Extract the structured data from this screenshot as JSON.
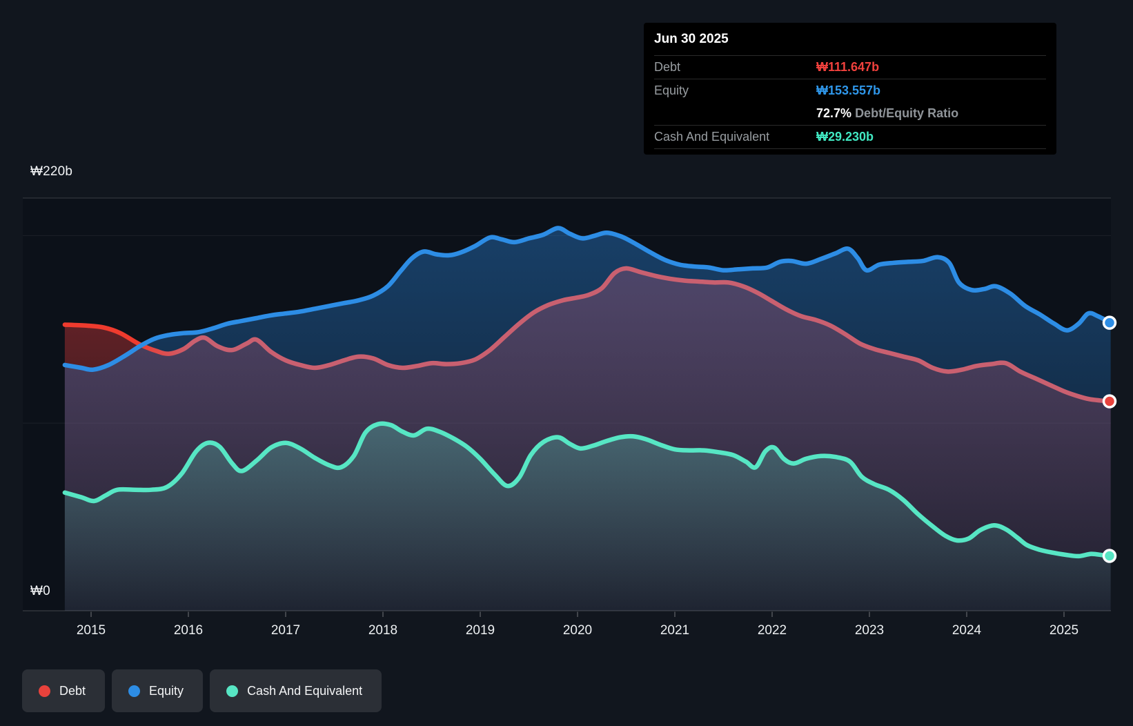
{
  "colors": {
    "page_bg": "#11161e",
    "plot_bg": "#0c1119",
    "grid_bright": "#ffffff",
    "debt_line": "#c96070",
    "debt_line_bright": "#ef3b2e",
    "debt_dot": "#e8423c",
    "debt_fill": "#e23a3a",
    "equity_line": "#2d8de5",
    "equity_fill": "#2676c4",
    "cash_line": "#57e6c4",
    "cash_fill": "#5ae4c8",
    "tooltip_debt_value": "#f1413d",
    "tooltip_equity_value": "#2f97ea",
    "tooltip_cash_value": "#41e8c2"
  },
  "tooltip": {
    "date": "Jun 30 2025",
    "debt_label": "Debt",
    "debt_value": "₩111.647b",
    "equity_label": "Equity",
    "equity_value": "₩153.557b",
    "ratio_value": "72.7%",
    "ratio_label": "Debt/Equity Ratio",
    "cash_label": "Cash And Equivalent",
    "cash_value": "₩29.230b"
  },
  "legend": {
    "items": [
      {
        "label": "Debt",
        "color": "#e8423c"
      },
      {
        "label": "Equity",
        "color": "#2d8de5"
      },
      {
        "label": "Cash And Equivalent",
        "color": "#57e6c4"
      }
    ]
  },
  "chart_data": {
    "type": "area",
    "unit": "₩ billions (KRW)",
    "x_axis": {
      "ticks": [
        2015,
        2016,
        2017,
        2018,
        2019,
        2020,
        2021,
        2022,
        2023,
        2024,
        2025
      ],
      "start": 2014.73,
      "end": 2025.48
    },
    "y_axis": {
      "top_label": "₩220b",
      "zero_label": "₩0",
      "max": 220,
      "min": 0,
      "gridlines": [
        220,
        200,
        100,
        0
      ]
    },
    "series": [
      {
        "name": "Debt",
        "final_value": 111.647,
        "points": [
          [
            2014.73,
            152.5
          ],
          [
            2014.95,
            152
          ],
          [
            2015.13,
            151
          ],
          [
            2015.3,
            148
          ],
          [
            2015.5,
            142
          ],
          [
            2015.67,
            138.5
          ],
          [
            2015.8,
            137
          ],
          [
            2015.95,
            139.5
          ],
          [
            2016.07,
            144
          ],
          [
            2016.17,
            145.5
          ],
          [
            2016.3,
            141
          ],
          [
            2016.45,
            139
          ],
          [
            2016.6,
            142.5
          ],
          [
            2016.7,
            144.5
          ],
          [
            2016.85,
            138
          ],
          [
            2017.0,
            133.5
          ],
          [
            2017.15,
            131
          ],
          [
            2017.3,
            129.5
          ],
          [
            2017.45,
            131
          ],
          [
            2017.6,
            133.5
          ],
          [
            2017.75,
            135.5
          ],
          [
            2017.9,
            134.5
          ],
          [
            2018.05,
            131
          ],
          [
            2018.2,
            129.5
          ],
          [
            2018.35,
            130.5
          ],
          [
            2018.5,
            132
          ],
          [
            2018.65,
            131.5
          ],
          [
            2018.8,
            132
          ],
          [
            2018.95,
            134
          ],
          [
            2019.1,
            139
          ],
          [
            2019.25,
            146
          ],
          [
            2019.4,
            153
          ],
          [
            2019.55,
            159
          ],
          [
            2019.7,
            163
          ],
          [
            2019.85,
            165.5
          ],
          [
            2020.0,
            167
          ],
          [
            2020.12,
            168.5
          ],
          [
            2020.25,
            172
          ],
          [
            2020.38,
            180
          ],
          [
            2020.5,
            182.5
          ],
          [
            2020.65,
            180.5
          ],
          [
            2020.8,
            178.5
          ],
          [
            2020.95,
            177
          ],
          [
            2021.1,
            176
          ],
          [
            2021.25,
            175.5
          ],
          [
            2021.4,
            175
          ],
          [
            2021.55,
            175
          ],
          [
            2021.7,
            173
          ],
          [
            2021.85,
            169.5
          ],
          [
            2022.0,
            165
          ],
          [
            2022.15,
            160.5
          ],
          [
            2022.3,
            157
          ],
          [
            2022.45,
            155
          ],
          [
            2022.6,
            152
          ],
          [
            2022.75,
            147.5
          ],
          [
            2022.9,
            142.5
          ],
          [
            2023.05,
            139.5
          ],
          [
            2023.2,
            137.5
          ],
          [
            2023.35,
            135.5
          ],
          [
            2023.5,
            133.5
          ],
          [
            2023.65,
            129.5
          ],
          [
            2023.8,
            127.5
          ],
          [
            2023.95,
            128.5
          ],
          [
            2024.1,
            130.5
          ],
          [
            2024.25,
            131.5
          ],
          [
            2024.4,
            132
          ],
          [
            2024.55,
            127.5
          ],
          [
            2024.7,
            124
          ],
          [
            2024.85,
            120.5
          ],
          [
            2025.0,
            117
          ],
          [
            2025.12,
            114.8
          ],
          [
            2025.25,
            112.9
          ],
          [
            2025.37,
            112.1
          ],
          [
            2025.48,
            111.647
          ]
        ]
      },
      {
        "name": "Equity",
        "final_value": 153.557,
        "points": [
          [
            2014.73,
            131
          ],
          [
            2014.9,
            129.5
          ],
          [
            2015.02,
            128.5
          ],
          [
            2015.18,
            131
          ],
          [
            2015.35,
            136
          ],
          [
            2015.5,
            141
          ],
          [
            2015.65,
            145
          ],
          [
            2015.8,
            147
          ],
          [
            2015.95,
            148
          ],
          [
            2016.1,
            148.5
          ],
          [
            2016.25,
            150.5
          ],
          [
            2016.4,
            153
          ],
          [
            2016.55,
            154.5
          ],
          [
            2016.7,
            156
          ],
          [
            2016.85,
            157.5
          ],
          [
            2017.0,
            158.5
          ],
          [
            2017.15,
            159.5
          ],
          [
            2017.3,
            161
          ],
          [
            2017.45,
            162.5
          ],
          [
            2017.6,
            164
          ],
          [
            2017.75,
            165.5
          ],
          [
            2017.9,
            168
          ],
          [
            2018.05,
            173
          ],
          [
            2018.18,
            181
          ],
          [
            2018.3,
            188
          ],
          [
            2018.42,
            191.5
          ],
          [
            2018.55,
            190
          ],
          [
            2018.68,
            189.5
          ],
          [
            2018.8,
            191
          ],
          [
            2018.95,
            194.5
          ],
          [
            2019.1,
            199
          ],
          [
            2019.22,
            198
          ],
          [
            2019.35,
            196.5
          ],
          [
            2019.5,
            198.5
          ],
          [
            2019.65,
            200.5
          ],
          [
            2019.8,
            204
          ],
          [
            2019.92,
            201
          ],
          [
            2020.05,
            198.5
          ],
          [
            2020.18,
            200
          ],
          [
            2020.3,
            201.5
          ],
          [
            2020.45,
            199.5
          ],
          [
            2020.6,
            195.5
          ],
          [
            2020.75,
            191
          ],
          [
            2020.9,
            187
          ],
          [
            2021.05,
            184.5
          ],
          [
            2021.2,
            183.5
          ],
          [
            2021.35,
            183
          ],
          [
            2021.5,
            181.5
          ],
          [
            2021.65,
            182
          ],
          [
            2021.8,
            182.5
          ],
          [
            2021.95,
            183
          ],
          [
            2022.08,
            186
          ],
          [
            2022.2,
            186.5
          ],
          [
            2022.35,
            185
          ],
          [
            2022.5,
            187.5
          ],
          [
            2022.65,
            190.5
          ],
          [
            2022.78,
            193
          ],
          [
            2022.88,
            188
          ],
          [
            2022.97,
            181.5
          ],
          [
            2023.1,
            184.5
          ],
          [
            2023.25,
            185.5
          ],
          [
            2023.4,
            186
          ],
          [
            2023.55,
            186.5
          ],
          [
            2023.7,
            188.5
          ],
          [
            2023.82,
            185.5
          ],
          [
            2023.92,
            175
          ],
          [
            2024.05,
            171
          ],
          [
            2024.18,
            171.5
          ],
          [
            2024.3,
            173
          ],
          [
            2024.45,
            169
          ],
          [
            2024.6,
            162.5
          ],
          [
            2024.75,
            158
          ],
          [
            2024.9,
            153
          ],
          [
            2025.03,
            149.5
          ],
          [
            2025.15,
            153
          ],
          [
            2025.25,
            158.5
          ],
          [
            2025.35,
            157
          ],
          [
            2025.48,
            153.557
          ]
        ]
      },
      {
        "name": "Cash And Equivalent",
        "final_value": 29.23,
        "points": [
          [
            2014.73,
            63
          ],
          [
            2014.9,
            60.5
          ],
          [
            2015.03,
            58.5
          ],
          [
            2015.15,
            61.5
          ],
          [
            2015.27,
            64.5
          ],
          [
            2015.45,
            64.5
          ],
          [
            2015.62,
            64.5
          ],
          [
            2015.78,
            66
          ],
          [
            2015.93,
            73
          ],
          [
            2016.08,
            85
          ],
          [
            2016.2,
            89.5
          ],
          [
            2016.32,
            87.5
          ],
          [
            2016.45,
            78.5
          ],
          [
            2016.55,
            74.5
          ],
          [
            2016.7,
            80
          ],
          [
            2016.85,
            87
          ],
          [
            2017.0,
            89.5
          ],
          [
            2017.15,
            86.5
          ],
          [
            2017.3,
            81.5
          ],
          [
            2017.45,
            77.5
          ],
          [
            2017.57,
            76.5
          ],
          [
            2017.7,
            82.5
          ],
          [
            2017.82,
            95
          ],
          [
            2017.95,
            99.5
          ],
          [
            2018.08,
            99
          ],
          [
            2018.2,
            95.5
          ],
          [
            2018.32,
            93.5
          ],
          [
            2018.45,
            97
          ],
          [
            2018.58,
            95.5
          ],
          [
            2018.72,
            92
          ],
          [
            2018.86,
            87.5
          ],
          [
            2019.0,
            81
          ],
          [
            2019.15,
            72.5
          ],
          [
            2019.28,
            66.5
          ],
          [
            2019.4,
            71
          ],
          [
            2019.52,
            83
          ],
          [
            2019.65,
            90
          ],
          [
            2019.8,
            92.5
          ],
          [
            2019.92,
            89
          ],
          [
            2020.03,
            86.5
          ],
          [
            2020.16,
            88
          ],
          [
            2020.3,
            90.5
          ],
          [
            2020.44,
            92.5
          ],
          [
            2020.57,
            93
          ],
          [
            2020.7,
            91.5
          ],
          [
            2020.85,
            88.5
          ],
          [
            2021.0,
            86
          ],
          [
            2021.15,
            85.5
          ],
          [
            2021.3,
            85.5
          ],
          [
            2021.45,
            84.5
          ],
          [
            2021.6,
            83
          ],
          [
            2021.73,
            79.5
          ],
          [
            2021.83,
            76.5
          ],
          [
            2021.93,
            85
          ],
          [
            2022.02,
            87
          ],
          [
            2022.12,
            81
          ],
          [
            2022.22,
            78.5
          ],
          [
            2022.35,
            81
          ],
          [
            2022.5,
            82.5
          ],
          [
            2022.65,
            82
          ],
          [
            2022.8,
            79.5
          ],
          [
            2022.92,
            71.5
          ],
          [
            2023.05,
            67.5
          ],
          [
            2023.2,
            64.5
          ],
          [
            2023.35,
            59
          ],
          [
            2023.5,
            51.5
          ],
          [
            2023.65,
            45
          ],
          [
            2023.78,
            40
          ],
          [
            2023.9,
            37.5
          ],
          [
            2024.02,
            38.5
          ],
          [
            2024.14,
            43
          ],
          [
            2024.28,
            45.5
          ],
          [
            2024.4,
            43.5
          ],
          [
            2024.52,
            39
          ],
          [
            2024.62,
            35
          ],
          [
            2024.75,
            32.5
          ],
          [
            2024.88,
            31
          ],
          [
            2025.02,
            29.8
          ],
          [
            2025.15,
            29.1
          ],
          [
            2025.28,
            30.3
          ],
          [
            2025.4,
            29.6
          ],
          [
            2025.48,
            29.23
          ]
        ]
      }
    ]
  }
}
